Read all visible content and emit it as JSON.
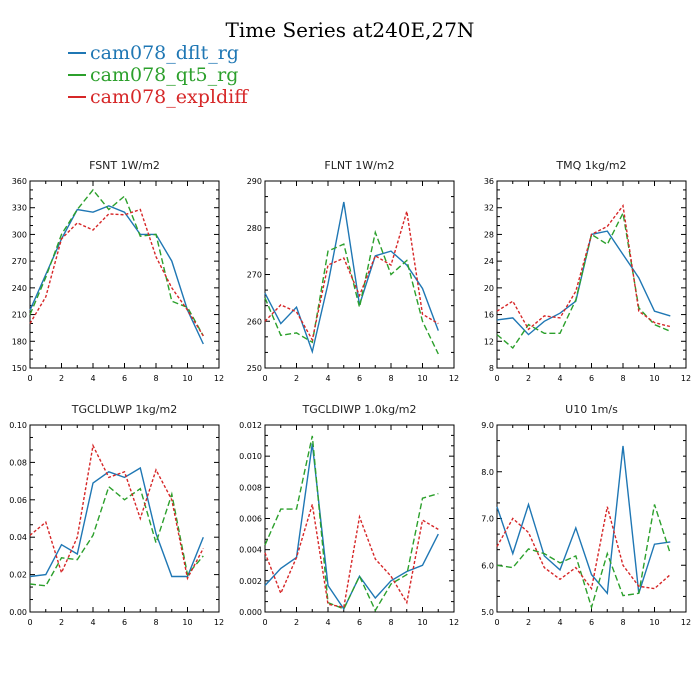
{
  "title": "Time Series at240E,27N",
  "legend": [
    {
      "name": "cam078_dflt_rg",
      "color": "#1f77b4"
    },
    {
      "name": "cam078_qt5_rg",
      "color": "#2ca02c"
    },
    {
      "name": "cam078_expldiff",
      "color": "#d62728"
    }
  ],
  "chart_data": [
    {
      "type": "line",
      "title": "FSNT   1W/m2",
      "xlim": [
        0,
        12
      ],
      "ylim": [
        150,
        360
      ],
      "xticks": [
        0,
        2,
        4,
        6,
        8,
        10,
        12
      ],
      "yticks": [
        150,
        180,
        210,
        240,
        270,
        300,
        330,
        360
      ],
      "ytick_labels": [
        "150",
        "180",
        "210",
        "240",
        "270",
        "300",
        "330",
        "360"
      ],
      "x": [
        0,
        1,
        2,
        3,
        4,
        5,
        6,
        7,
        8,
        9,
        10,
        11
      ],
      "series": [
        {
          "name": "cam078_dflt_rg",
          "values": [
            215,
            255,
            295,
            328,
            325,
            332,
            325,
            300,
            300,
            270,
            215,
            177
          ]
        },
        {
          "name": "cam078_qt5_rg",
          "values": [
            210,
            252,
            300,
            328,
            350,
            328,
            343,
            298,
            300,
            225,
            218,
            186
          ]
        },
        {
          "name": "cam078_expldiff",
          "values": [
            200,
            230,
            295,
            313,
            305,
            323,
            322,
            328,
            275,
            240,
            215,
            186
          ]
        }
      ]
    },
    {
      "type": "line",
      "title": "FLNT   1W/m2",
      "xlim": [
        0,
        12
      ],
      "ylim": [
        250,
        290
      ],
      "xticks": [
        0,
        2,
        4,
        6,
        8,
        10,
        12
      ],
      "yticks": [
        250,
        260,
        270,
        280,
        290
      ],
      "ytick_labels": [
        "250",
        "260",
        "270",
        "280",
        "290"
      ],
      "x": [
        0,
        1,
        2,
        3,
        4,
        5,
        6,
        7,
        8,
        9,
        10,
        11
      ],
      "series": [
        {
          "name": "cam078_dflt_rg",
          "values": [
            266,
            259.5,
            263,
            253.5,
            268,
            285.5,
            263.5,
            274,
            275,
            272,
            267,
            258
          ]
        },
        {
          "name": "cam078_qt5_rg",
          "values": [
            265,
            257,
            257.5,
            255.5,
            275,
            276.5,
            263,
            279,
            270,
            273,
            260,
            253
          ]
        },
        {
          "name": "cam078_expldiff",
          "values": [
            260,
            263.5,
            262,
            256,
            272,
            273.5,
            265.5,
            274,
            272,
            283.5,
            261.5,
            259.5
          ]
        }
      ]
    },
    {
      "type": "line",
      "title": "TMQ   1kg/m2",
      "xlim": [
        0,
        12
      ],
      "ylim": [
        8,
        36
      ],
      "xticks": [
        0,
        2,
        4,
        6,
        8,
        10,
        12
      ],
      "yticks": [
        8,
        12,
        16,
        20,
        24,
        28,
        32,
        36
      ],
      "ytick_labels": [
        "8",
        "12",
        "16",
        "20",
        "24",
        "28",
        "32",
        "36"
      ],
      "x": [
        0,
        1,
        2,
        3,
        4,
        5,
        6,
        7,
        8,
        9,
        10,
        11
      ],
      "series": [
        {
          "name": "cam078_dflt_rg",
          "values": [
            15.2,
            15.5,
            13,
            15,
            16.2,
            18,
            28,
            28.5,
            25,
            21.5,
            16.5,
            15.8
          ]
        },
        {
          "name": "cam078_qt5_rg",
          "values": [
            13,
            11,
            14.5,
            13.2,
            13.2,
            18.2,
            28,
            26.5,
            31.2,
            17,
            14.5,
            13.5
          ]
        },
        {
          "name": "cam078_expldiff",
          "values": [
            16.5,
            18,
            13.8,
            15.8,
            15.5,
            19.5,
            28,
            29.2,
            32.3,
            16.5,
            14.8,
            14.2
          ]
        }
      ]
    },
    {
      "type": "line",
      "title": "TGCLDLWP   1kg/m2",
      "xlim": [
        0,
        12
      ],
      "ylim": [
        0,
        0.1
      ],
      "xticks": [
        0,
        2,
        4,
        6,
        8,
        10,
        12
      ],
      "yticks": [
        0,
        0.02,
        0.04,
        0.06,
        0.08,
        0.1
      ],
      "ytick_labels": [
        "0.00",
        "0.02",
        "0.04",
        "0.06",
        "0.08",
        "0.10"
      ],
      "x": [
        0,
        1,
        2,
        3,
        4,
        5,
        6,
        7,
        8,
        9,
        10,
        11
      ],
      "series": [
        {
          "name": "cam078_dflt_rg",
          "values": [
            0.019,
            0.02,
            0.036,
            0.031,
            0.069,
            0.075,
            0.072,
            0.077,
            0.042,
            0.019,
            0.019,
            0.04
          ]
        },
        {
          "name": "cam078_qt5_rg",
          "values": [
            0.015,
            0.014,
            0.029,
            0.028,
            0.041,
            0.067,
            0.06,
            0.066,
            0.037,
            0.063,
            0.02,
            0.03
          ]
        },
        {
          "name": "cam078_expldiff",
          "values": [
            0.041,
            0.048,
            0.021,
            0.04,
            0.089,
            0.072,
            0.075,
            0.05,
            0.076,
            0.06,
            0.018,
            0.034
          ]
        }
      ]
    },
    {
      "type": "line",
      "title": "TGCLDIWP   1.0kg/m2",
      "xlim": [
        0,
        12
      ],
      "ylim": [
        0,
        0.012
      ],
      "xticks": [
        0,
        2,
        4,
        6,
        8,
        10,
        12
      ],
      "yticks": [
        0,
        0.002,
        0.004,
        0.006,
        0.008,
        0.01,
        0.012
      ],
      "ytick_labels": [
        "0.000",
        "0.002",
        "0.004",
        "0.006",
        "0.008",
        "0.010",
        "0.012"
      ],
      "x": [
        0,
        1,
        2,
        3,
        4,
        5,
        6,
        7,
        8,
        9,
        10,
        11
      ],
      "series": [
        {
          "name": "cam078_dflt_rg",
          "values": [
            0.0017,
            0.0028,
            0.0035,
            0.0108,
            0.0017,
            0.0002,
            0.0023,
            0.0009,
            0.002,
            0.0026,
            0.003,
            0.005
          ]
        },
        {
          "name": "cam078_qt5_rg",
          "values": [
            0.0043,
            0.0066,
            0.0066,
            0.0113,
            0.0006,
            0.0002,
            0.0023,
            0.0001,
            0.0018,
            0.0024,
            0.0073,
            0.0076
          ]
        },
        {
          "name": "cam078_expldiff",
          "values": [
            0.0038,
            0.0012,
            0.0035,
            0.0069,
            0.0005,
            0.0003,
            0.0061,
            0.0034,
            0.0023,
            0.0006,
            0.0059,
            0.0053
          ]
        }
      ]
    },
    {
      "type": "line",
      "title": "U10   1m/s",
      "xlim": [
        0,
        12
      ],
      "ylim": [
        5,
        9
      ],
      "xticks": [
        0,
        2,
        4,
        6,
        8,
        10,
        12
      ],
      "yticks": [
        5,
        6,
        7,
        8,
        9
      ],
      "ytick_labels": [
        "5.0",
        "6.0",
        "7.0",
        "8.0",
        "9.0"
      ],
      "x": [
        0,
        1,
        2,
        3,
        4,
        5,
        6,
        7,
        8,
        9,
        10,
        11
      ],
      "series": [
        {
          "name": "cam078_dflt_rg",
          "values": [
            7.25,
            6.25,
            7.3,
            6.2,
            5.9,
            6.8,
            5.8,
            5.4,
            8.55,
            5.4,
            6.45,
            6.5
          ]
        },
        {
          "name": "cam078_qt5_rg",
          "values": [
            6.0,
            5.95,
            6.35,
            6.25,
            6.05,
            6.2,
            5.1,
            6.25,
            5.35,
            5.4,
            7.3,
            6.25
          ]
        },
        {
          "name": "cam078_expldiff",
          "values": [
            6.4,
            7.0,
            6.7,
            5.95,
            5.7,
            5.95,
            5.5,
            7.25,
            6.0,
            5.55,
            5.5,
            5.8
          ]
        }
      ]
    }
  ]
}
